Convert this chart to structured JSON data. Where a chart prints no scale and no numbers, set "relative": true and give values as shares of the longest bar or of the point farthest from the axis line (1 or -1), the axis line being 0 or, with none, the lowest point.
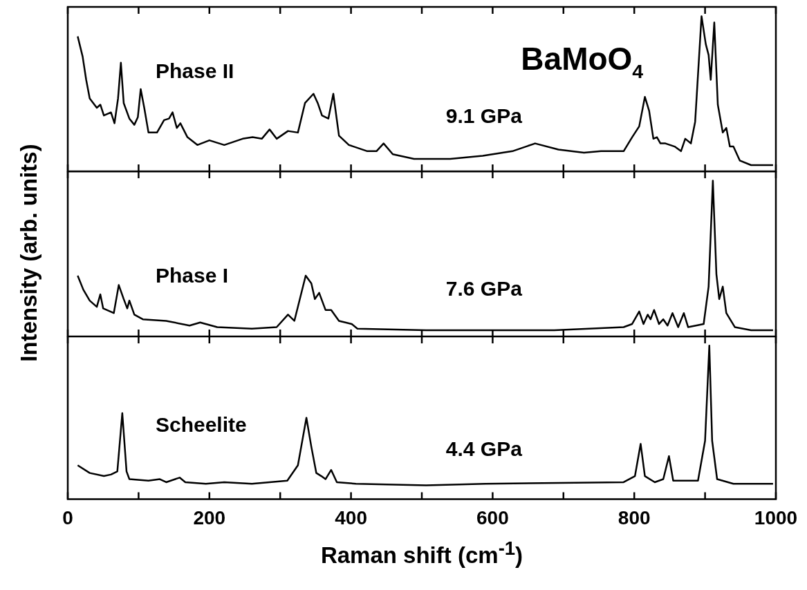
{
  "chart_data": [
    {
      "type": "line",
      "relative": true,
      "annotations": [
        "Phase II",
        "9.1 GPa",
        "BaMoO$_{4}$"
      ],
      "xlim": [
        0,
        1000
      ],
      "xticks": [
        0,
        {
          "value": 100,
          "label": null
        },
        200,
        {
          "value": 300,
          "label": null
        },
        400,
        {
          "value": 500,
          "label": null
        },
        600,
        {
          "value": 700,
          "label": null
        },
        800,
        {
          "value": 900,
          "label": null
        },
        1000
      ],
      "tick_labels": false,
      "color": "#000000",
      "x": [
        14,
        21,
        26,
        31,
        41,
        46,
        51,
        61,
        66,
        71,
        75,
        79,
        87,
        94,
        99,
        103,
        108,
        114,
        126,
        136,
        143,
        148,
        154,
        159,
        169,
        183,
        200,
        221,
        247,
        261,
        274,
        285,
        295,
        311,
        325,
        335,
        347,
        353,
        359,
        368,
        375,
        383,
        397,
        423,
        436,
        446,
        459,
        489,
        540,
        586,
        628,
        660,
        693,
        729,
        753,
        785,
        797,
        807,
        815,
        821,
        827,
        832,
        837,
        844,
        857,
        866,
        872,
        880,
        886,
        895,
        901,
        905,
        908,
        913,
        918,
        925,
        930,
        935,
        940,
        949,
        965,
        996
      ],
      "values": [
        0.87,
        0.74,
        0.59,
        0.47,
        0.41,
        0.43,
        0.36,
        0.38,
        0.31,
        0.47,
        0.7,
        0.44,
        0.34,
        0.3,
        0.35,
        0.53,
        0.41,
        0.25,
        0.25,
        0.33,
        0.34,
        0.38,
        0.28,
        0.31,
        0.22,
        0.17,
        0.2,
        0.17,
        0.21,
        0.22,
        0.21,
        0.27,
        0.21,
        0.26,
        0.25,
        0.44,
        0.5,
        0.44,
        0.36,
        0.34,
        0.5,
        0.23,
        0.17,
        0.13,
        0.13,
        0.18,
        0.11,
        0.08,
        0.08,
        0.1,
        0.13,
        0.18,
        0.14,
        0.12,
        0.13,
        0.13,
        0.22,
        0.29,
        0.48,
        0.39,
        0.21,
        0.22,
        0.18,
        0.18,
        0.16,
        0.13,
        0.21,
        0.18,
        0.32,
        1.0,
        0.82,
        0.75,
        0.59,
        0.96,
        0.43,
        0.25,
        0.28,
        0.16,
        0.16,
        0.07,
        0.04,
        0.04
      ]
    },
    {
      "type": "line",
      "relative": true,
      "annotations": [
        "Phase I",
        "7.6 GPa"
      ],
      "ylabel": "Intensity (arb. units)",
      "xlim": [
        0,
        1000
      ],
      "xticks": [
        0,
        {
          "value": 100,
          "label": null
        },
        200,
        {
          "value": 300,
          "label": null
        },
        400,
        {
          "value": 500,
          "label": null
        },
        600,
        {
          "value": 700,
          "label": null
        },
        800,
        {
          "value": 900,
          "label": null
        },
        1000
      ],
      "tick_labels": false,
      "color": "#000000",
      "x": [
        14,
        22,
        31,
        41,
        46,
        50,
        65,
        72,
        79,
        84,
        87,
        94,
        106,
        139,
        172,
        187,
        211,
        260,
        295,
        311,
        320,
        336,
        344,
        349,
        355,
        364,
        372,
        383,
        401,
        409,
        506,
        556,
        687,
        785,
        797,
        807,
        813,
        819,
        823,
        828,
        835,
        841,
        847,
        854,
        862,
        870,
        876,
        898,
        905,
        911,
        916,
        920,
        925,
        930,
        942,
        965,
        996
      ],
      "values": [
        0.39,
        0.3,
        0.23,
        0.19,
        0.27,
        0.18,
        0.15,
        0.33,
        0.24,
        0.18,
        0.23,
        0.14,
        0.11,
        0.1,
        0.07,
        0.09,
        0.06,
        0.05,
        0.06,
        0.14,
        0.1,
        0.39,
        0.34,
        0.24,
        0.28,
        0.17,
        0.17,
        0.1,
        0.08,
        0.05,
        0.04,
        0.04,
        0.04,
        0.06,
        0.08,
        0.16,
        0.08,
        0.14,
        0.11,
        0.17,
        0.08,
        0.11,
        0.07,
        0.15,
        0.06,
        0.15,
        0.06,
        0.08,
        0.32,
        1.0,
        0.4,
        0.24,
        0.32,
        0.15,
        0.06,
        0.04,
        0.04
      ]
    },
    {
      "type": "line",
      "relative": true,
      "annotations": [
        "Scheelite",
        "4.4 GPa"
      ],
      "xlabel": "Raman shift (cm$^{-1}$)",
      "xlim": [
        0,
        1000
      ],
      "xticks": [
        0,
        {
          "value": 100,
          "label": null
        },
        200,
        {
          "value": 300,
          "label": null
        },
        400,
        {
          "value": 500,
          "label": null
        },
        600,
        {
          "value": 700,
          "label": null
        },
        800,
        {
          "value": 900,
          "label": null
        },
        1000
      ],
      "tick_labels": "x",
      "color": "#000000",
      "x": [
        14,
        31,
        51,
        61,
        70,
        77,
        83,
        87,
        114,
        130,
        139,
        158,
        166,
        195,
        221,
        260,
        310,
        325,
        337,
        344,
        351,
        358,
        364,
        372,
        380,
        407,
        506,
        590,
        785,
        801,
        809,
        815,
        829,
        841,
        849,
        855,
        890,
        900,
        906,
        910,
        917,
        940,
        996
      ],
      "values": [
        0.22,
        0.17,
        0.15,
        0.16,
        0.18,
        0.56,
        0.18,
        0.13,
        0.12,
        0.13,
        0.11,
        0.14,
        0.11,
        0.1,
        0.11,
        0.1,
        0.12,
        0.22,
        0.53,
        0.34,
        0.17,
        0.15,
        0.13,
        0.19,
        0.11,
        0.1,
        0.09,
        0.1,
        0.11,
        0.15,
        0.36,
        0.15,
        0.11,
        0.13,
        0.28,
        0.12,
        0.12,
        0.38,
        1.0,
        0.38,
        0.13,
        0.1,
        0.1
      ]
    }
  ]
}
